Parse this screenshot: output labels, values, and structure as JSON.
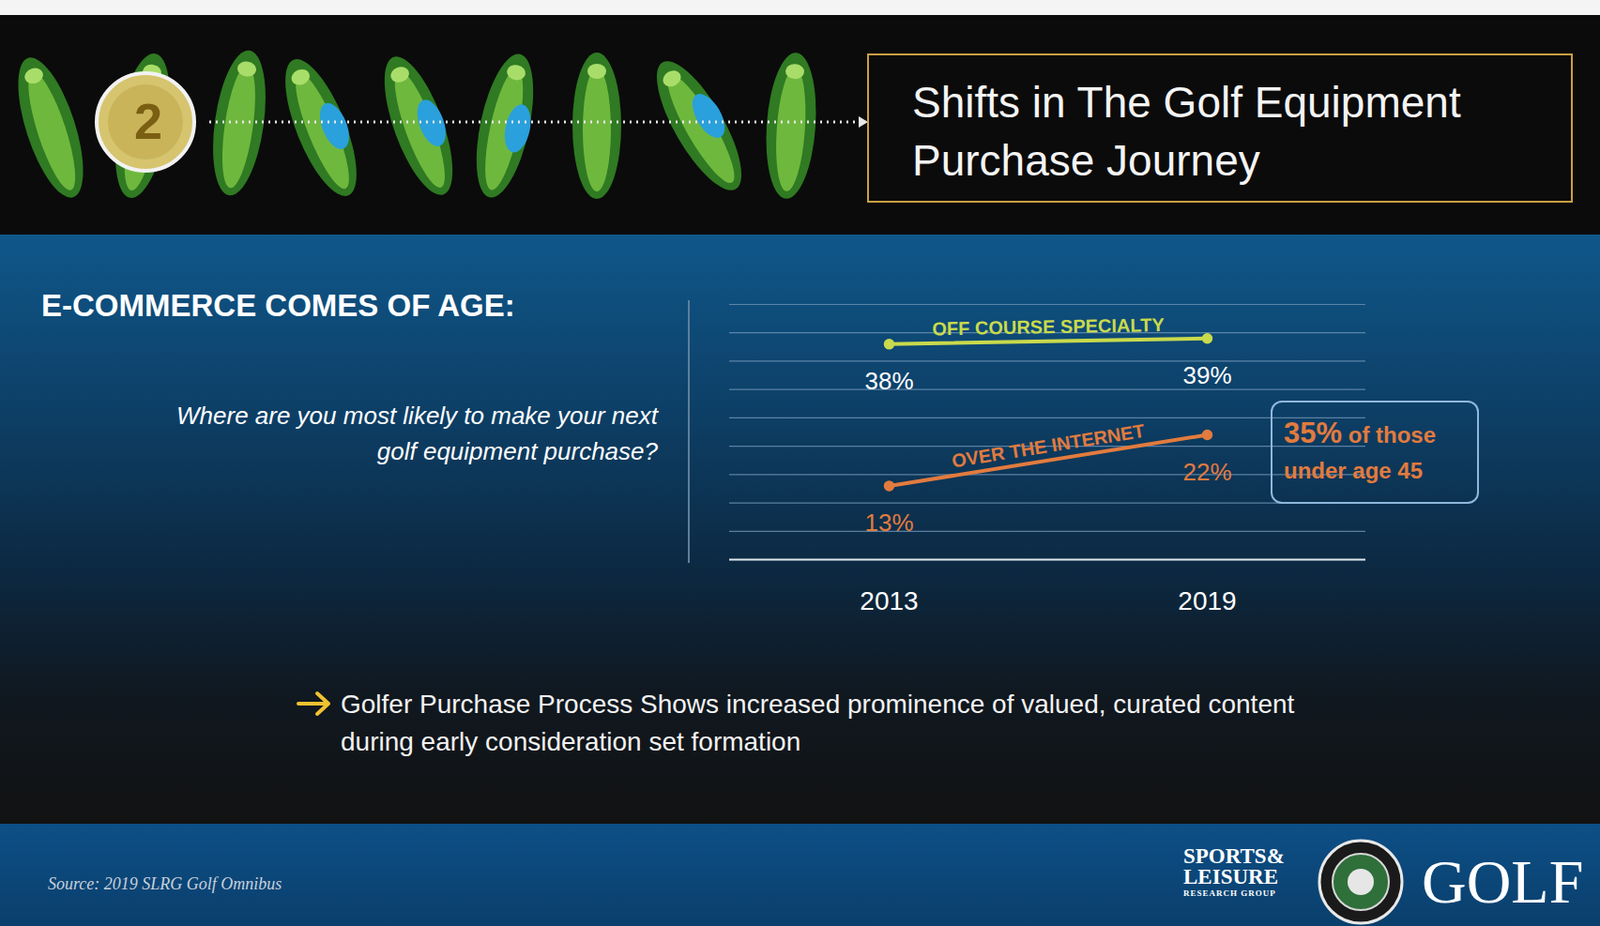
{
  "header": {
    "step": "2",
    "title": "Shifts in The Golf Equipment Purchase Journey"
  },
  "chart_data": {
    "type": "line",
    "title": "E-COMMERCE COMES OF AGE:",
    "subtitle": "Where are you most likely to make your next golf equipment purchase?",
    "categories": [
      "2013",
      "2019"
    ],
    "series": [
      {
        "name": "OFF COURSE SPECIALTY",
        "color": "#c9da4c",
        "values": [
          38,
          39
        ],
        "value_labels": [
          "38%",
          "39%"
        ]
      },
      {
        "name": "OVER THE INTERNET",
        "color": "#e27b3e",
        "values": [
          13,
          22
        ],
        "value_labels": [
          "13%",
          "22%"
        ]
      }
    ],
    "ylim": [
      0,
      45
    ],
    "yticks": [
      0,
      5,
      10,
      15,
      20,
      25,
      30,
      35,
      40,
      45
    ],
    "grid": true,
    "tick_labels": "x",
    "data_labels": true,
    "marker": "circle",
    "annotations": [
      {
        "label": "35%",
        "text": "of those under age 45"
      }
    ]
  },
  "takeaway": "Golfer Purchase Process Shows increased prominence of valued, curated content during early consideration set formation",
  "source": "Source: 2019 SLRG Golf Omnibus",
  "logos": {
    "research_group": [
      "SPORTS&",
      "LEISURE",
      "RESEARCH GROUP"
    ],
    "brand": "GOLF"
  }
}
